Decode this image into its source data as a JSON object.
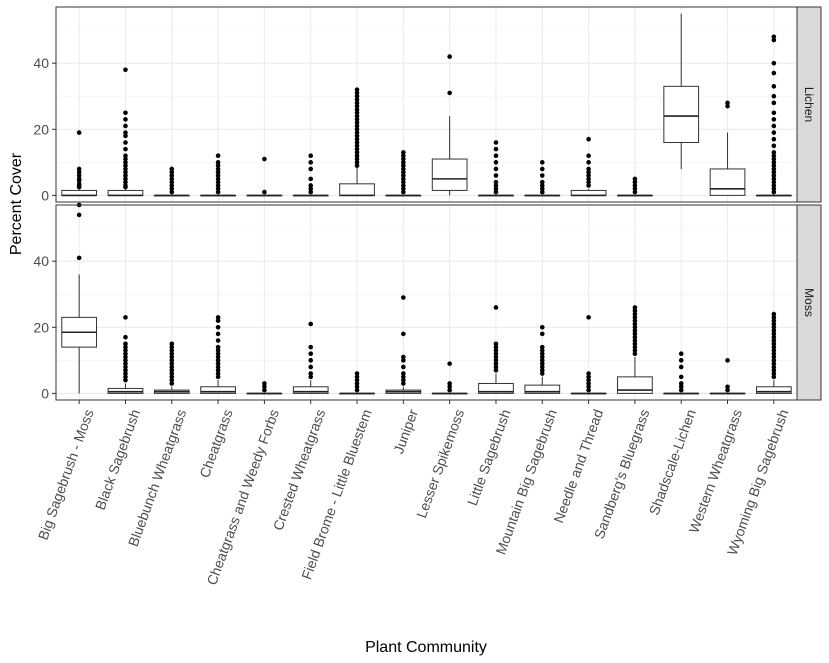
{
  "chart_data": {
    "type": "boxplot",
    "ylabel": "Percent Cover",
    "xlabel": "Plant Community",
    "ylim": [
      -2,
      57
    ],
    "yticks": [
      0,
      20,
      40
    ],
    "grid": true,
    "categories": [
      "Big Sagebrush - Moss",
      "Black Sagebrush",
      "Bluebunch Wheatgrass",
      "Cheatgrass",
      "Cheatgrass and Weedy Forbs",
      "Crested Wheatgrass",
      "Field Brome - Little Bluestem",
      "Juniper",
      "Lesser Spikemoss",
      "Little Sagebrush",
      "Mountain Big Sagebrush",
      "Needle and Thread",
      "Sandberg's Bluegrass",
      "Shadscale-Lichen",
      "Western Wheatgrass",
      "Wyoming Big Sagebrush"
    ],
    "panels": [
      {
        "name": "Lichen",
        "boxes": [
          {
            "min": 0,
            "q1": 0,
            "median": 0,
            "q3": 1.5,
            "max": 2,
            "outliers": [
              2.5,
              3,
              3.5,
              4.5,
              5,
              6,
              7,
              8,
              19
            ]
          },
          {
            "min": 0,
            "q1": 0,
            "median": 0,
            "q3": 1.5,
            "max": 2,
            "outliers": [
              2.5,
              3,
              4,
              5,
              6,
              7,
              8,
              9,
              10,
              11,
              12,
              14,
              16,
              18,
              19,
              21,
              23,
              25,
              38
            ]
          },
          {
            "min": 0,
            "q1": 0,
            "median": 0,
            "q3": 0,
            "max": 0,
            "outliers": [
              1,
              2,
              3,
              4,
              5,
              6,
              7,
              8
            ]
          },
          {
            "min": 0,
            "q1": 0,
            "median": 0,
            "q3": 0,
            "max": 0,
            "outliers": [
              1,
              2,
              3,
              4,
              5,
              6,
              7,
              8,
              9,
              10,
              12
            ]
          },
          {
            "min": 0,
            "q1": 0,
            "median": 0,
            "q3": 0,
            "max": 0,
            "outliers": [
              1,
              11
            ]
          },
          {
            "min": 0,
            "q1": 0,
            "median": 0,
            "q3": 0,
            "max": 0,
            "outliers": [
              1,
              2,
              3,
              5,
              8,
              10,
              12
            ]
          },
          {
            "min": 0,
            "q1": 0,
            "median": 0,
            "q3": 3.5,
            "max": 8.5,
            "outliers": [
              9,
              10,
              11,
              12,
              13,
              14,
              15,
              16,
              17,
              18,
              19,
              20,
              21,
              22,
              23,
              24,
              25,
              26,
              27,
              28,
              29,
              30,
              31,
              32
            ]
          },
          {
            "min": 0,
            "q1": 0,
            "median": 0,
            "q3": 0,
            "max": 0,
            "outliers": [
              1,
              2,
              3,
              4,
              5,
              6,
              7,
              8,
              9,
              10,
              11,
              12,
              13
            ]
          },
          {
            "min": 0,
            "q1": 1.5,
            "median": 5,
            "q3": 11,
            "max": 24,
            "outliers": [
              31,
              42
            ]
          },
          {
            "min": 0,
            "q1": 0,
            "median": 0,
            "q3": 0,
            "max": 0,
            "outliers": [
              1,
              2,
              3,
              4,
              6,
              8,
              10,
              12,
              14,
              16
            ]
          },
          {
            "min": 0,
            "q1": 0,
            "median": 0,
            "q3": 0,
            "max": 0,
            "outliers": [
              1,
              2,
              3,
              4,
              6,
              8,
              10
            ]
          },
          {
            "min": 0,
            "q1": 0,
            "median": 0,
            "q3": 1.5,
            "max": 2,
            "outliers": [
              3,
              4,
              5,
              6,
              7,
              8,
              10,
              12,
              17
            ]
          },
          {
            "min": 0,
            "q1": 0,
            "median": 0,
            "q3": 0,
            "max": 0,
            "outliers": [
              1,
              2,
              3,
              4,
              5
            ]
          },
          {
            "min": 8,
            "q1": 16,
            "median": 24,
            "q3": 33,
            "max": 55,
            "outliers": []
          },
          {
            "min": 0,
            "q1": 0,
            "median": 2,
            "q3": 8,
            "max": 19,
            "outliers": [
              27,
              28
            ]
          },
          {
            "min": 0,
            "q1": 0,
            "median": 0,
            "q3": 0,
            "max": 0,
            "outliers": [
              1,
              2,
              3,
              4,
              5,
              6,
              7,
              8,
              9,
              10,
              11,
              12,
              13,
              15,
              17,
              19,
              21,
              23,
              25,
              28,
              30,
              33,
              37,
              40,
              47,
              48
            ]
          }
        ]
      },
      {
        "name": "Moss",
        "boxes": [
          {
            "min": 0,
            "q1": 14,
            "median": 18.5,
            "q3": 23,
            "max": 36,
            "outliers": [
              41,
              54,
              57
            ]
          },
          {
            "min": 0,
            "q1": 0,
            "median": 0.5,
            "q3": 1.5,
            "max": 3,
            "outliers": [
              4,
              5,
              6,
              7,
              8,
              9,
              10,
              11,
              12,
              13,
              14,
              15,
              17,
              23
            ]
          },
          {
            "min": 0,
            "q1": 0,
            "median": 0.5,
            "q3": 1,
            "max": 2,
            "outliers": [
              3,
              4,
              5,
              6,
              7,
              8,
              9,
              10,
              11,
              12,
              13,
              14,
              15
            ]
          },
          {
            "min": 0,
            "q1": 0,
            "median": 0.5,
            "q3": 2,
            "max": 4,
            "outliers": [
              5,
              6,
              7,
              8,
              9,
              10,
              11,
              12,
              13,
              14,
              16,
              18,
              20,
              22,
              23
            ]
          },
          {
            "min": 0,
            "q1": 0,
            "median": 0,
            "q3": 0,
            "max": 0,
            "outliers": [
              1,
              2,
              3
            ]
          },
          {
            "min": 0,
            "q1": 0,
            "median": 0.5,
            "q3": 2,
            "max": 4,
            "outliers": [
              5,
              6,
              8,
              10,
              12,
              14,
              21
            ]
          },
          {
            "min": 0,
            "q1": 0,
            "median": 0,
            "q3": 0,
            "max": 0,
            "outliers": [
              1,
              2,
              3,
              4,
              5,
              6
            ]
          },
          {
            "min": 0,
            "q1": 0,
            "median": 0.5,
            "q3": 1,
            "max": 2,
            "outliers": [
              3,
              4,
              5,
              6,
              8,
              10,
              11,
              18,
              29
            ]
          },
          {
            "min": 0,
            "q1": 0,
            "median": 0,
            "q3": 0,
            "max": 0,
            "outliers": [
              1,
              2,
              3,
              9
            ]
          },
          {
            "min": 0,
            "q1": 0,
            "median": 0.5,
            "q3": 3,
            "max": 6,
            "outliers": [
              7,
              8,
              9,
              10,
              11,
              12,
              13,
              14,
              15,
              26
            ]
          },
          {
            "min": 0,
            "q1": 0,
            "median": 0.5,
            "q3": 2.5,
            "max": 5,
            "outliers": [
              6,
              7,
              8,
              9,
              10,
              11,
              12,
              13,
              14,
              18,
              20
            ]
          },
          {
            "min": 0,
            "q1": 0,
            "median": 0,
            "q3": 0,
            "max": 0,
            "outliers": [
              1,
              2,
              3,
              4,
              5,
              6,
              23
            ]
          },
          {
            "min": 0,
            "q1": 0,
            "median": 1,
            "q3": 5,
            "max": 11,
            "outliers": [
              12,
              13,
              14,
              15,
              16,
              17,
              18,
              19,
              20,
              21,
              22,
              23,
              24,
              25,
              26
            ]
          },
          {
            "min": 0,
            "q1": 0,
            "median": 0,
            "q3": 0,
            "max": 0,
            "outliers": [
              1,
              2,
              3,
              5,
              8,
              10,
              12
            ]
          },
          {
            "min": 0,
            "q1": 0,
            "median": 0,
            "q3": 0,
            "max": 0,
            "outliers": [
              1,
              2,
              10
            ]
          },
          {
            "min": 0,
            "q1": 0,
            "median": 0.5,
            "q3": 2,
            "max": 4,
            "outliers": [
              5,
              6,
              7,
              8,
              9,
              10,
              11,
              12,
              13,
              14,
              15,
              16,
              17,
              18,
              19,
              20,
              21,
              22,
              23,
              24
            ]
          }
        ]
      }
    ]
  }
}
